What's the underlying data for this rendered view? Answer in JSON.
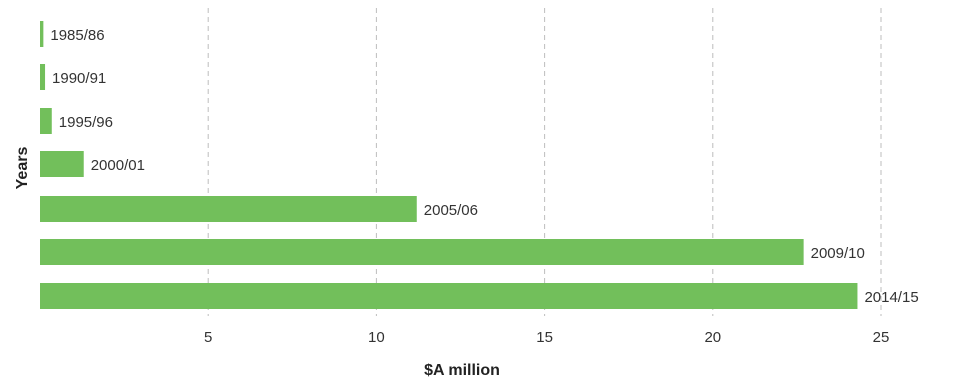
{
  "chart_data": {
    "type": "bar",
    "orientation": "horizontal",
    "categories": [
      "1985/86",
      "1990/91",
      "1995/96",
      "2000/01",
      "2005/06",
      "2009/10",
      "2014/15"
    ],
    "values": [
      0.1,
      0.15,
      0.35,
      1.3,
      11.2,
      22.7,
      24.3
    ],
    "xlabel": "$A million",
    "ylabel": "Years",
    "xlim": [
      0,
      25
    ],
    "xticks": [
      5,
      10,
      15,
      20,
      25
    ],
    "grid": true,
    "bar_color": "#72bf5b",
    "grid_color": "#bdbdbd"
  }
}
